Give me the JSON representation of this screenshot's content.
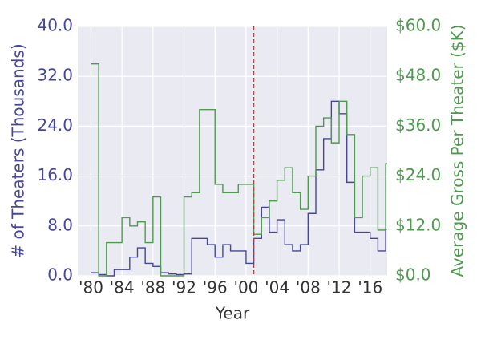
{
  "chart_data": {
    "type": "step",
    "xlabel": "Year",
    "ylabel": "# of Theaters (Thousands)",
    "y2label": "Average Gross Per Theater ($K)",
    "x": [
      1980,
      1981,
      1982,
      1983,
      1984,
      1985,
      1986,
      1987,
      1988,
      1989,
      1990,
      1991,
      1992,
      1993,
      1994,
      1995,
      1996,
      1997,
      1998,
      1999,
      2000,
      2001,
      2002,
      2003,
      2004,
      2005,
      2006,
      2007,
      2008,
      2009,
      2010,
      2011,
      2012,
      2013,
      2014,
      2015,
      2016,
      2017,
      2018
    ],
    "series": [
      {
        "color": "#46469a",
        "values": [
          0.5,
          0.2,
          0,
          1,
          1,
          3,
          4.5,
          2,
          1.5,
          0.5,
          0.3,
          0.2,
          0.3,
          6,
          6,
          5,
          3,
          5,
          4,
          4,
          2,
          6,
          11,
          7,
          9,
          5,
          4,
          5,
          10,
          17,
          22,
          28,
          26,
          15,
          7,
          7,
          6,
          4,
          7.5
        ]
      },
      {
        "color": "#4e9a4e",
        "axis": "y2",
        "values": [
          51,
          0,
          8,
          8,
          14,
          12,
          13,
          8,
          19,
          0,
          0,
          0,
          19,
          20,
          40,
          40,
          22,
          20,
          20,
          22,
          22,
          10,
          14,
          18,
          23,
          26,
          20,
          16,
          24,
          36,
          38,
          32,
          42,
          34,
          14,
          24,
          26,
          11,
          27
        ]
      }
    ],
    "vline": 2001,
    "vline_color": "#b04040",
    "xlim": [
      1978.3,
      2018.2
    ],
    "xticks": [
      {
        "value": 1980,
        "label": "'80"
      },
      {
        "value": 1984,
        "label": "'84"
      },
      {
        "value": 1988,
        "label": "'88"
      },
      {
        "value": 1992,
        "label": "'92"
      },
      {
        "value": 1996,
        "label": "'96"
      },
      {
        "value": 2000,
        "label": "'00"
      },
      {
        "value": 2004,
        "label": "'04"
      },
      {
        "value": 2008,
        "label": "'08"
      },
      {
        "value": 2012,
        "label": "'12"
      },
      {
        "value": 2016,
        "label": "'16"
      }
    ],
    "ylim": [
      0,
      40
    ],
    "yticks": [
      {
        "value": 0,
        "label": "0.0"
      },
      {
        "value": 8,
        "label": "8.0"
      },
      {
        "value": 16,
        "label": "16.0"
      },
      {
        "value": 24,
        "label": "24.0"
      },
      {
        "value": 32,
        "label": "32.0"
      },
      {
        "value": 40,
        "label": "40.0"
      }
    ],
    "y2lim": [
      0,
      60
    ],
    "y2ticks": [
      {
        "value": 0,
        "label": "$0.0"
      },
      {
        "value": 12,
        "label": "$12.0"
      },
      {
        "value": 24,
        "label": "$24.0"
      },
      {
        "value": 36,
        "label": "$36.0"
      },
      {
        "value": 48,
        "label": "$48.0"
      },
      {
        "value": 60,
        "label": "$60.0"
      }
    ],
    "grid": true
  }
}
